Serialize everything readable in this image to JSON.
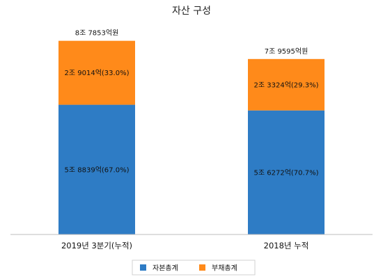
{
  "chart_data": {
    "type": "bar",
    "stacked": true,
    "title": "자산 구성",
    "categories": [
      "2019년 3분기(누적)",
      "2018년 누적"
    ],
    "series": [
      {
        "name": "자본총계",
        "color": "#2e7cc5",
        "values": [
          58839,
          56272
        ],
        "labels": [
          "5조 8839억(67.0%)",
          "5조 6272억(70.7%)"
        ]
      },
      {
        "name": "부채총계",
        "color": "#ff8a1a",
        "values": [
          29014,
          23324
        ],
        "labels": [
          "2조 9014억(33.0%)",
          "2조 3324억(29.3%)"
        ]
      }
    ],
    "totals": [
      87853,
      79595
    ],
    "total_labels": [
      "8조 7853억원",
      "7조 9595억원"
    ],
    "ylim": [
      0,
      95000
    ],
    "grid": false,
    "legend_position": "bottom"
  }
}
